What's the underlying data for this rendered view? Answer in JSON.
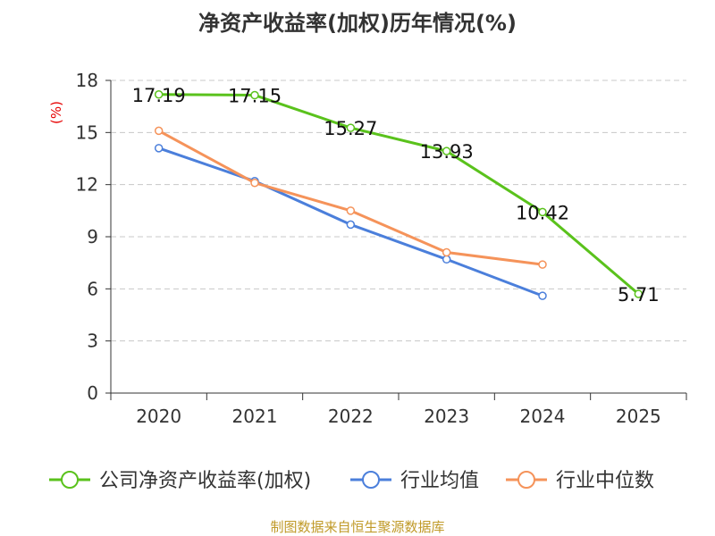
{
  "title": "净资产收益率(加权)历年情况(%)",
  "y_unit": "(%)",
  "source": "制图数据来自恒生聚源数据库",
  "colors": {
    "company": "#5ac21c",
    "industry_avg": "#4b7fdb",
    "industry_median": "#f5935a",
    "axis": "#333333",
    "grid": "#c8c8c8",
    "unit": "#e60000",
    "source": "#c09a28"
  },
  "chart_data": {
    "type": "line",
    "title": "净资产收益率(加权)历年情况(%)",
    "ylabel": "(%)",
    "xlabel": "",
    "categories": [
      "2020",
      "2021",
      "2022",
      "2023",
      "2024",
      "2025"
    ],
    "ylim": [
      0,
      18
    ],
    "yticks": [
      0,
      3,
      6,
      9,
      12,
      15,
      18
    ],
    "grid": true,
    "legend_position": "bottom",
    "series": [
      {
        "name": "公司净资产收益率(加权)",
        "key": "company",
        "values": [
          17.19,
          17.15,
          15.27,
          13.93,
          10.42,
          5.71
        ],
        "value_labels": [
          "17.19",
          "17.15",
          "15.27",
          "13.93",
          "10.42",
          "5.71"
        ]
      },
      {
        "name": "行业均值",
        "key": "industry_avg",
        "values": [
          14.1,
          12.2,
          9.7,
          7.7,
          5.6,
          null
        ]
      },
      {
        "name": "行业中位数",
        "key": "industry_median",
        "values": [
          15.1,
          12.1,
          10.5,
          8.1,
          7.4,
          null
        ]
      }
    ]
  }
}
